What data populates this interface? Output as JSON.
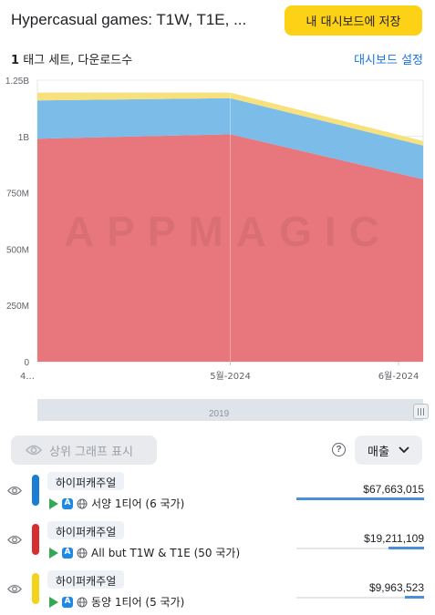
{
  "header": {
    "title": "Hypercasual games: T1W, T1E, ...",
    "save_button": "내 대시보드에 저장"
  },
  "subbar": {
    "set_count": "1",
    "set_label": "태그 세트, 다운로드수",
    "dashboard_link": "대시보드 설정"
  },
  "chart_data": {
    "type": "area",
    "stacked": true,
    "watermark": "APPMAGIC",
    "y_ticks": [
      "1.25B",
      "1B",
      "750M",
      "500M",
      "250M",
      "0"
    ],
    "x_ticks": [
      "4...",
      "5월-2024",
      "6월-2024"
    ],
    "ylim": [
      0,
      1250000000
    ],
    "x_points": [
      "4월-2024",
      "5월-2024",
      "6월-2024"
    ],
    "series": [
      {
        "name": "하이퍼캐주얼 · 서양 1티어",
        "color": "#e8777d",
        "values": [
          990000000,
          1010000000,
          810000000
        ]
      },
      {
        "name": "하이퍼캐주얼 · All but T1W & T1E",
        "color": "#7bbce9",
        "values": [
          170000000,
          160000000,
          150000000
        ]
      },
      {
        "name": "하이퍼캐주얼 · 동양 1티어",
        "color": "#f6e17d",
        "values": [
          35000000,
          25000000,
          20000000
        ]
      }
    ],
    "grid": true
  },
  "navigator": {
    "year": "2019"
  },
  "controls": {
    "show_top_graph": "상위 그래프 표시",
    "help": "?",
    "metric": "매출"
  },
  "rows": [
    {
      "tag": "하이퍼캐주얼",
      "tier": "서양 1티어 (6 국가)",
      "value": "$67,663,015",
      "color": "#1a7fd4",
      "share": 1.0
    },
    {
      "tag": "하이퍼캐주얼",
      "tier": "All but T1W & T1E (50 국가)",
      "value": "$19,211,109",
      "color": "#d62f2f",
      "share": 0.28
    },
    {
      "tag": "하이퍼캐주얼",
      "tier": "동양 1티어 (5 국가)",
      "value": "$9,963,523",
      "color": "#f3d31d",
      "share": 0.15
    }
  ]
}
